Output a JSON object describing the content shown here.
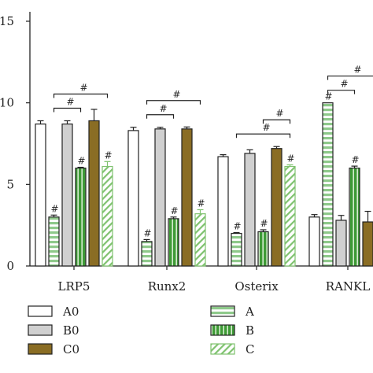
{
  "chart_data": {
    "type": "bar",
    "categories": [
      "LRP5",
      "Runx2",
      "Osterix",
      "RANKL"
    ],
    "ylim": [
      0,
      15
    ],
    "yticks": [
      0,
      5,
      10,
      15
    ],
    "series": [
      {
        "name": "A0",
        "values": [
          8.7,
          8.3,
          6.7,
          3.0
        ],
        "errors": [
          0.2,
          0.2,
          0.12,
          0.15
        ],
        "color": "#ffffff",
        "pattern": "solid",
        "marks": [
          false,
          false,
          false,
          false
        ]
      },
      {
        "name": "A",
        "values": [
          3.0,
          1.5,
          2.0,
          10.0
        ],
        "errors": [
          0.12,
          0.12,
          0.05,
          0.0
        ],
        "color": "#8ec98a",
        "pattern": "hstripe",
        "marks": [
          true,
          true,
          true,
          true
        ]
      },
      {
        "name": "B0",
        "values": [
          8.7,
          8.4,
          6.9,
          2.8
        ],
        "errors": [
          0.2,
          0.1,
          0.22,
          0.3
        ],
        "color": "#d0d0d0",
        "pattern": "solid",
        "marks": [
          false,
          false,
          false,
          false
        ]
      },
      {
        "name": "B",
        "values": [
          6.0,
          2.9,
          2.1,
          6.0
        ],
        "errors": [
          0.05,
          0.1,
          0.12,
          0.12
        ],
        "color": "#3e9a36",
        "pattern": "vstripe",
        "marks": [
          true,
          true,
          true,
          true
        ]
      },
      {
        "name": "C0",
        "values": [
          8.9,
          8.4,
          7.2,
          2.7
        ],
        "errors": [
          0.7,
          0.12,
          0.12,
          0.65
        ],
        "color": "#8a6d24",
        "pattern": "solid",
        "marks": [
          false,
          false,
          false,
          false
        ]
      },
      {
        "name": "C",
        "values": [
          6.1,
          3.2,
          6.1,
          null
        ],
        "errors": [
          0.3,
          0.25,
          0.1,
          0
        ],
        "color": "#7fc26f",
        "pattern": "diag",
        "marks": [
          true,
          true,
          true,
          false
        ]
      }
    ],
    "annotations": [
      {
        "label": "#",
        "category": 0,
        "from_series": 1,
        "to_series": 3
      },
      {
        "label": "#",
        "category": 0,
        "from_series": 1,
        "to_series": 5
      },
      {
        "label": "#",
        "category": 1,
        "from_series": 1,
        "to_series": 3
      },
      {
        "label": "#",
        "category": 1,
        "from_series": 1,
        "to_series": 5
      },
      {
        "label": "#",
        "category": 2,
        "from_series": 1,
        "to_series": 5
      },
      {
        "label": "#",
        "category": 2,
        "from_series": 3,
        "to_series": 5
      },
      {
        "label": "#",
        "category": 3,
        "from_series": 1,
        "to_series": 3
      },
      {
        "label": "#",
        "category": 3,
        "from_series": 1,
        "to_series": 5
      }
    ],
    "legend": [
      "A0",
      "A",
      "B0",
      "B",
      "C0",
      "C"
    ]
  }
}
